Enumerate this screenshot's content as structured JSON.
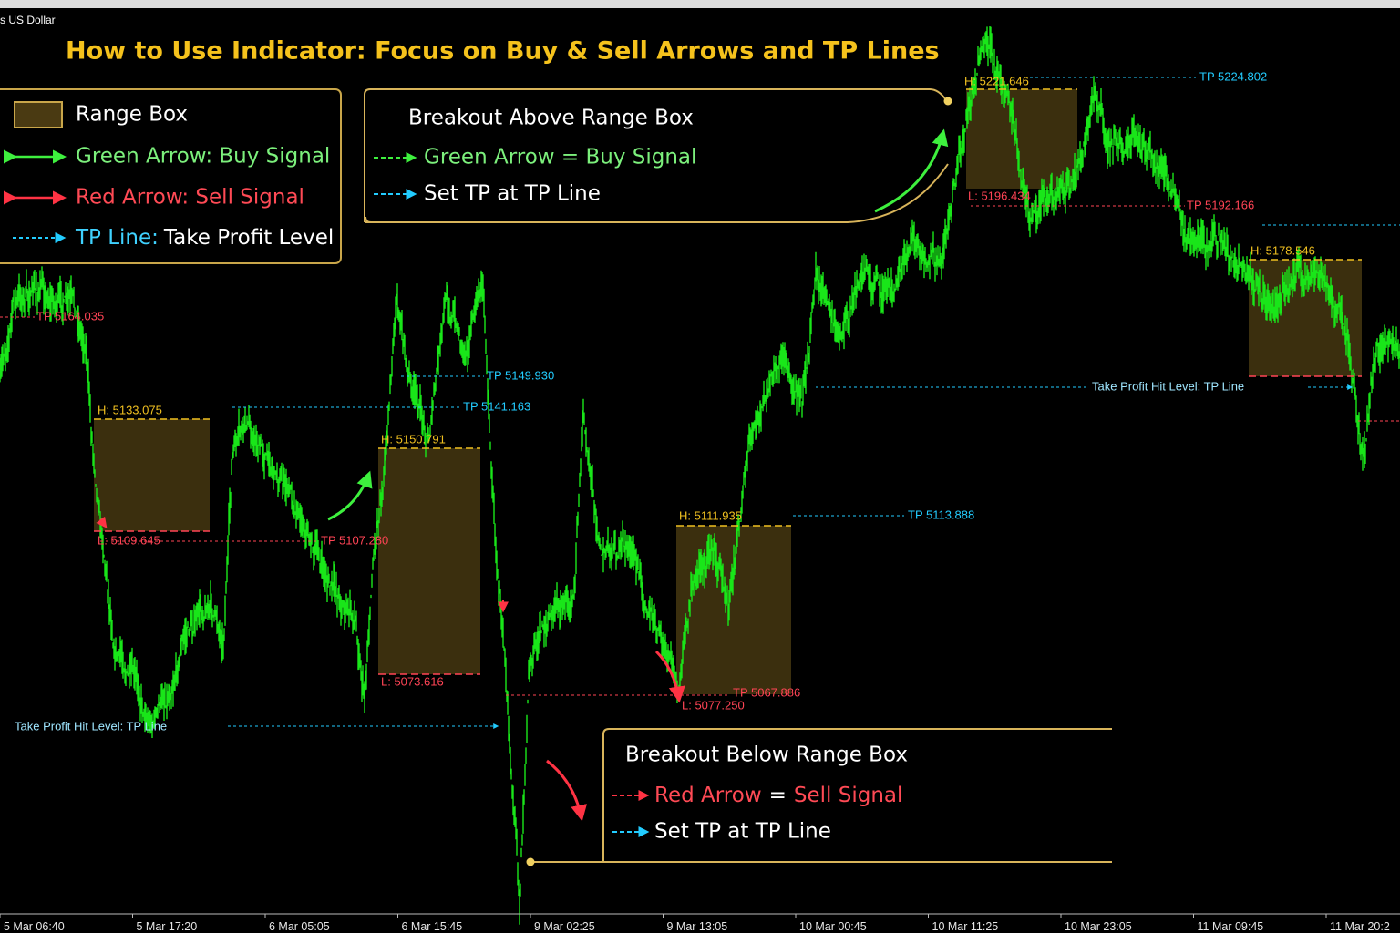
{
  "header": {
    "symbol": "s US Dollar",
    "title": "How to Use Indicator: Focus on Buy & Sell Arrows and TP Lines"
  },
  "legend": {
    "items": [
      {
        "label": "Range Box"
      },
      {
        "label": "Green Arrow: Buy Signal"
      },
      {
        "label": "Red Arrow: Sell Signal"
      },
      {
        "label": "TP Line:",
        "note": "Take Profit Level"
      }
    ]
  },
  "callouts": [
    {
      "title": "Breakout Above Range Box",
      "signal": "Green Arrow = Buy Signal",
      "tp": "Set TP at TP Line"
    },
    {
      "title": "Breakout Below Range Box",
      "signal": "Red Arrow",
      "equals": "=",
      "signal_name": "Sell Signal",
      "tp": "Set TP at TP Line"
    }
  ],
  "levels": [
    "TP 5164.035",
    "H: 5133.075",
    "L: 5109.645",
    "TP 5107.280",
    "TP 5141.163",
    "TP 5149.930",
    "H: 5150.791",
    "L: 5073.616",
    "H: 5111.935",
    "L: 5077.250",
    "TP 5067.886",
    "TP 5113.888",
    "H: 5221.646",
    "L: 5196.434",
    "TP 5224.802",
    "TP 5192.166",
    "H: 5178.546"
  ],
  "hit_labels": [
    "Take Profit Hit Level: TP Line",
    "Take Profit Hit Level: TP Line"
  ],
  "time_axis": [
    "5 Mar 06:40",
    "5 Mar 17:20",
    "6 Mar 05:05",
    "6 Mar 15:45",
    "9 Mar 02:25",
    "9 Mar 13:05",
    "10 Mar 00:45",
    "10 Mar 11:25",
    "10 Mar 23:05",
    "11 Mar 09:45",
    "11 Mar 20:2"
  ]
}
